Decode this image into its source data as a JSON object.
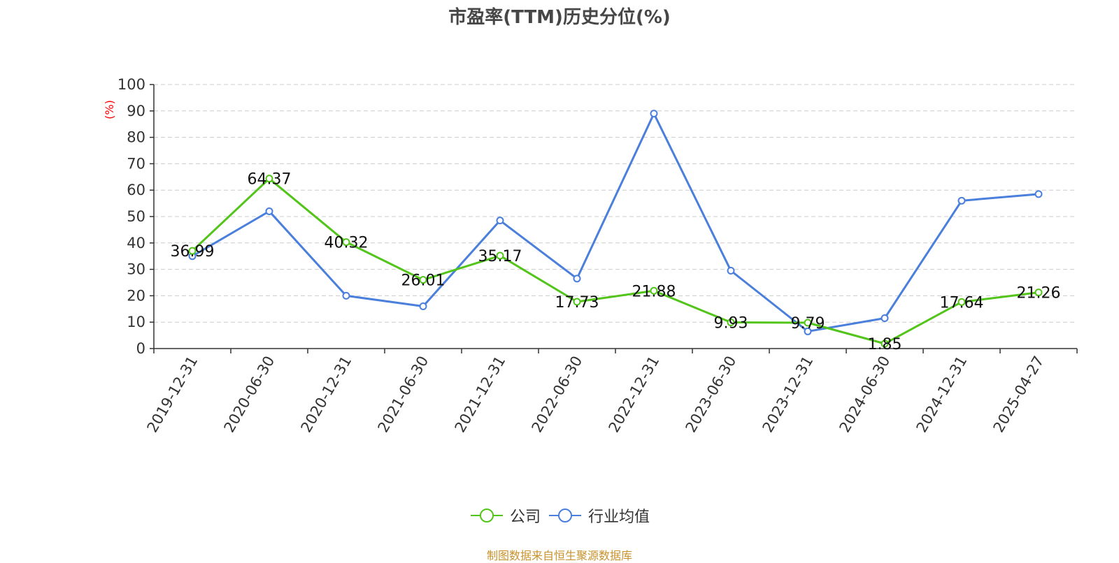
{
  "chart_data": {
    "type": "line",
    "title": "市盈率(TTM)历史分位(%)",
    "ylabel": "(%)",
    "xlabel": "",
    "ylim": [
      0,
      100
    ],
    "yticks": [
      0,
      10,
      20,
      30,
      40,
      50,
      60,
      70,
      80,
      90,
      100
    ],
    "categories": [
      "2019-12-31",
      "2020-06-30",
      "2020-12-31",
      "2021-06-30",
      "2021-12-31",
      "2022-06-30",
      "2022-12-31",
      "2023-06-30",
      "2023-12-31",
      "2024-06-30",
      "2024-12-31",
      "2025-04-27"
    ],
    "grid": true,
    "legend_position": "bottom",
    "series": [
      {
        "name": "公司",
        "color": "#52c41a",
        "values": [
          36.99,
          64.37,
          40.32,
          26.01,
          35.17,
          17.73,
          21.88,
          9.93,
          9.79,
          1.85,
          17.64,
          21.26
        ],
        "labels": [
          "36.99",
          "64.37",
          "40.32",
          "26.01",
          "35.17",
          "17.73",
          "21.88",
          "9.93",
          "9.79",
          "1.85",
          "17.64",
          "21.26"
        ]
      },
      {
        "name": "行业均值",
        "color": "#4a7fdc",
        "values": [
          35,
          52,
          20,
          16,
          48.5,
          26.5,
          89,
          29.5,
          6.5,
          11.5,
          56,
          58.5
        ]
      }
    ]
  },
  "source_note": "制图数据来自恒生聚源数据库",
  "colors": {
    "axis": "#333333",
    "grid": "#cccccc",
    "ylabel": "#ff0000"
  }
}
